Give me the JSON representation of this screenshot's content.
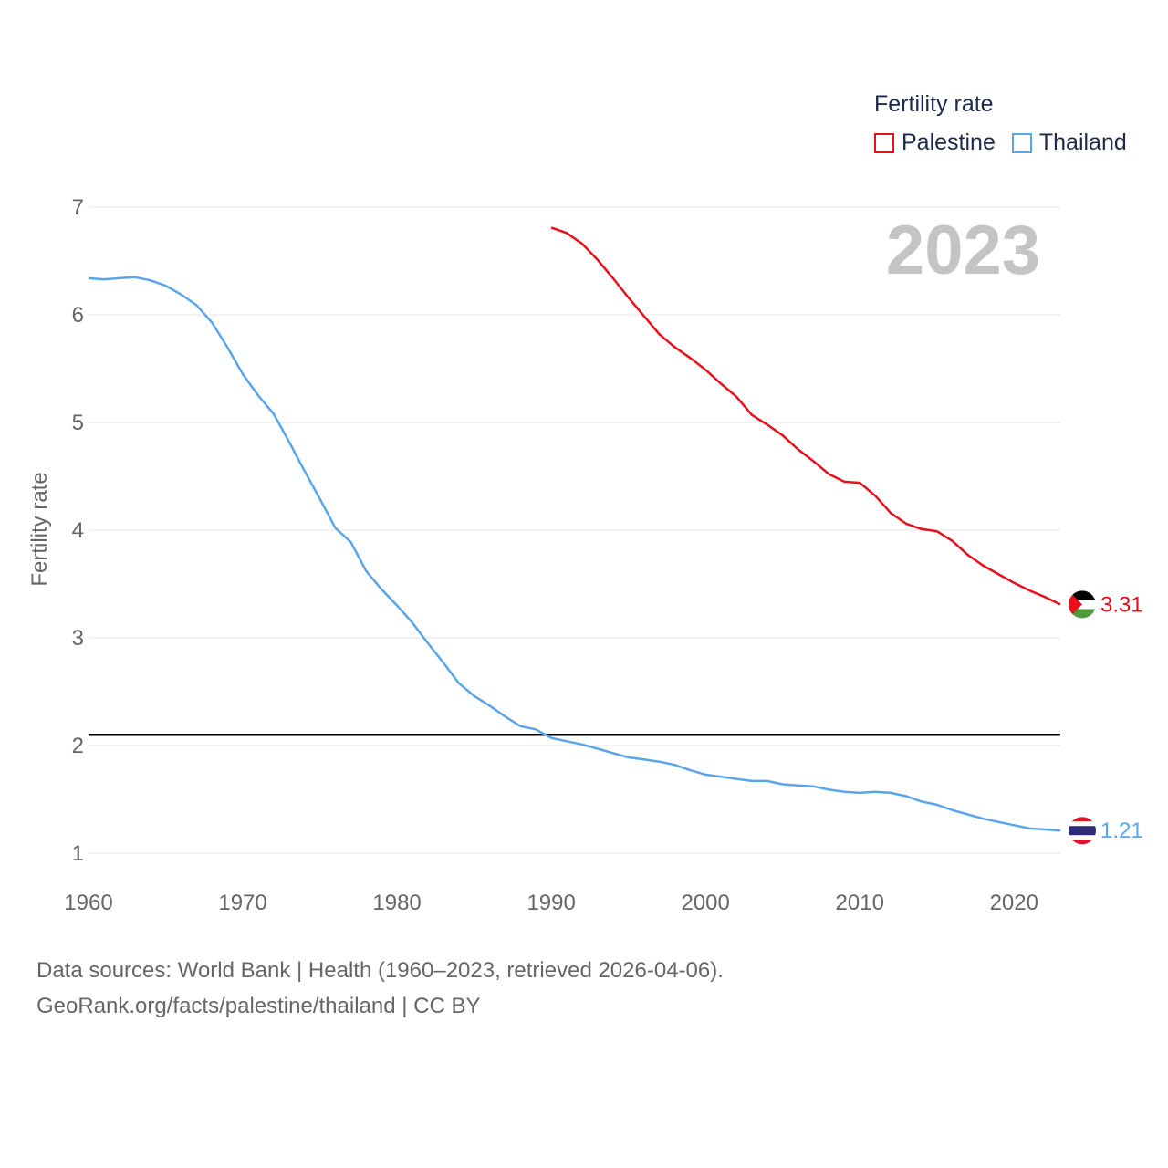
{
  "legend": {
    "title": "Fertility rate",
    "items": [
      {
        "label": "Palestine",
        "color": "#e8101a"
      },
      {
        "label": "Thailand",
        "color": "#5aa5ea"
      }
    ]
  },
  "year_watermark": "2023",
  "footer": {
    "line1": "Data sources: World Bank | Health (1960–2023, retrieved 2026-04-06).",
    "line2": "GeoRank.org/facts/palestine/thailand | CC BY"
  },
  "chart_data": {
    "type": "line",
    "title": "",
    "xlabel": "",
    "ylabel": "Fertility rate",
    "xlim": [
      1960,
      2023
    ],
    "ylim": [
      1,
      7
    ],
    "xticks": [
      1960,
      1970,
      1980,
      1990,
      2000,
      2010,
      2020
    ],
    "yticks": [
      1,
      2,
      3,
      4,
      5,
      6,
      7
    ],
    "grid": true,
    "reference_line": {
      "y": 2.1,
      "color": "#000000"
    },
    "series": [
      {
        "name": "Palestine",
        "color": "#e8101a",
        "end_label": "3.31",
        "x": [
          1990,
          1991,
          1992,
          1993,
          1994,
          1995,
          1996,
          1997,
          1998,
          1999,
          2000,
          2001,
          2002,
          2003,
          2004,
          2005,
          2006,
          2007,
          2008,
          2009,
          2010,
          2011,
          2012,
          2013,
          2014,
          2015,
          2016,
          2017,
          2018,
          2019,
          2020,
          2021,
          2022,
          2023
        ],
        "values": [
          6.81,
          6.76,
          6.66,
          6.51,
          6.34,
          6.16,
          5.99,
          5.82,
          5.7,
          5.6,
          5.49,
          5.36,
          5.24,
          5.07,
          4.98,
          4.88,
          4.75,
          4.64,
          4.52,
          4.45,
          4.44,
          4.32,
          4.16,
          4.06,
          4.01,
          3.99,
          3.9,
          3.77,
          3.67,
          3.59,
          3.51,
          3.44,
          3.38,
          3.31
        ]
      },
      {
        "name": "Thailand",
        "color": "#5aa5ea",
        "end_label": "1.21",
        "x": [
          1960,
          1961,
          1962,
          1963,
          1964,
          1965,
          1966,
          1967,
          1968,
          1969,
          1970,
          1971,
          1972,
          1973,
          1974,
          1975,
          1976,
          1977,
          1978,
          1979,
          1980,
          1981,
          1982,
          1983,
          1984,
          1985,
          1986,
          1987,
          1988,
          1989,
          1990,
          1991,
          1992,
          1993,
          1994,
          1995,
          1996,
          1997,
          1998,
          1999,
          2000,
          2001,
          2002,
          2003,
          2004,
          2005,
          2006,
          2007,
          2008,
          2009,
          2010,
          2011,
          2012,
          2013,
          2014,
          2015,
          2016,
          2017,
          2018,
          2019,
          2020,
          2021,
          2022,
          2023
        ],
        "values": [
          6.34,
          6.33,
          6.34,
          6.35,
          6.32,
          6.27,
          6.19,
          6.09,
          5.93,
          5.7,
          5.45,
          5.25,
          5.08,
          4.82,
          4.55,
          4.29,
          4.02,
          3.89,
          3.62,
          3.45,
          3.3,
          3.14,
          2.95,
          2.77,
          2.58,
          2.46,
          2.37,
          2.27,
          2.18,
          2.15,
          2.07,
          2.04,
          2.01,
          1.97,
          1.93,
          1.89,
          1.87,
          1.85,
          1.82,
          1.77,
          1.73,
          1.71,
          1.69,
          1.67,
          1.67,
          1.64,
          1.63,
          1.62,
          1.59,
          1.57,
          1.56,
          1.57,
          1.56,
          1.53,
          1.48,
          1.45,
          1.4,
          1.36,
          1.32,
          1.29,
          1.26,
          1.23,
          1.22,
          1.21
        ]
      }
    ]
  }
}
